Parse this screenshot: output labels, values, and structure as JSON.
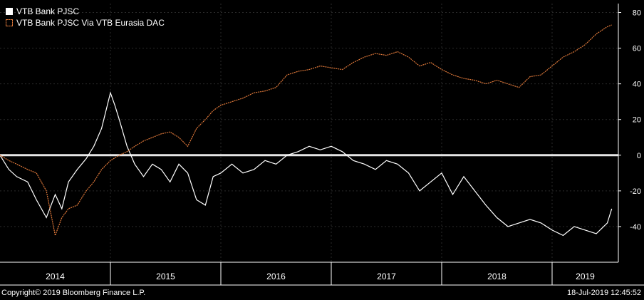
{
  "chart_data": {
    "type": "line",
    "title": "",
    "xlabel": "",
    "ylabel": "",
    "x_ticks": [
      "2014",
      "2015",
      "2016",
      "2017",
      "2018",
      "2019"
    ],
    "y_ticks": [
      80,
      60,
      40,
      20,
      0,
      -20,
      -40
    ],
    "ylim": [
      -60,
      85
    ],
    "xlim": [
      2014.0,
      2019.6
    ],
    "baseline": 0,
    "legend_position": "top-left",
    "series": [
      {
        "name": "VTB Bank PJSC",
        "color": "#ffffff",
        "style": "solid",
        "x": [
          2014.0,
          2014.08,
          2014.15,
          2014.25,
          2014.33,
          2014.42,
          2014.5,
          2014.56,
          2014.62,
          2014.7,
          2014.78,
          2014.85,
          2014.92,
          2015.0,
          2015.04,
          2015.08,
          2015.15,
          2015.22,
          2015.3,
          2015.38,
          2015.46,
          2015.54,
          2015.62,
          2015.7,
          2015.78,
          2015.86,
          2015.93,
          2016.0,
          2016.1,
          2016.2,
          2016.3,
          2016.4,
          2016.5,
          2016.6,
          2016.7,
          2016.8,
          2016.9,
          2017.0,
          2017.1,
          2017.2,
          2017.3,
          2017.4,
          2017.5,
          2017.6,
          2017.7,
          2017.8,
          2017.9,
          2018.0,
          2018.1,
          2018.2,
          2018.3,
          2018.4,
          2018.5,
          2018.6,
          2018.7,
          2018.8,
          2018.9,
          2019.0,
          2019.1,
          2019.2,
          2019.3,
          2019.4,
          2019.5,
          2019.54
        ],
        "y": [
          0,
          -8,
          -12,
          -15,
          -25,
          -35,
          -22,
          -30,
          -15,
          -8,
          -2,
          5,
          15,
          35,
          28,
          20,
          5,
          -5,
          -12,
          -5,
          -8,
          -15,
          -5,
          -10,
          -25,
          -28,
          -12,
          -10,
          -5,
          -10,
          -8,
          -3,
          -5,
          0,
          2,
          5,
          3,
          5,
          2,
          -3,
          -5,
          -8,
          -3,
          -5,
          -10,
          -20,
          -15,
          -10,
          -22,
          -12,
          -20,
          -28,
          -35,
          -40,
          -38,
          -36,
          -38,
          -42,
          -45,
          -40,
          -42,
          -44,
          -38,
          -30
        ]
      },
      {
        "name": "VTB Bank PJSC Via VTB Eurasia DAC",
        "color": "#e0793a",
        "style": "dashed",
        "x": [
          2014.0,
          2014.08,
          2014.15,
          2014.25,
          2014.33,
          2014.42,
          2014.5,
          2014.56,
          2014.62,
          2014.7,
          2014.78,
          2014.85,
          2014.92,
          2015.0,
          2015.08,
          2015.15,
          2015.22,
          2015.3,
          2015.38,
          2015.46,
          2015.54,
          2015.62,
          2015.7,
          2015.78,
          2015.86,
          2015.93,
          2016.0,
          2016.1,
          2016.2,
          2016.3,
          2016.4,
          2016.5,
          2016.6,
          2016.7,
          2016.8,
          2016.9,
          2017.0,
          2017.1,
          2017.2,
          2017.3,
          2017.4,
          2017.5,
          2017.6,
          2017.7,
          2017.8,
          2017.9,
          2018.0,
          2018.1,
          2018.2,
          2018.3,
          2018.4,
          2018.5,
          2018.6,
          2018.7,
          2018.8,
          2018.9,
          2019.0,
          2019.1,
          2019.2,
          2019.3,
          2019.4,
          2019.5,
          2019.54
        ],
        "y": [
          0,
          -3,
          -5,
          -8,
          -10,
          -20,
          -45,
          -35,
          -30,
          -28,
          -20,
          -15,
          -8,
          -3,
          0,
          2,
          5,
          8,
          10,
          12,
          13,
          10,
          5,
          15,
          20,
          25,
          28,
          30,
          32,
          35,
          36,
          38,
          45,
          47,
          48,
          50,
          49,
          48,
          52,
          55,
          57,
          56,
          58,
          55,
          50,
          52,
          48,
          45,
          43,
          42,
          40,
          42,
          40,
          38,
          44,
          45,
          50,
          55,
          58,
          62,
          68,
          72,
          73
        ]
      }
    ]
  },
  "legend": {
    "series1": "VTB Bank PJSC",
    "series2": "VTB Bank PJSC Via VTB Eurasia DAC"
  },
  "footer": {
    "copyright": "Copyright© 2019 Bloomberg Finance L.P.",
    "timestamp": "18-Jul-2019 12:45:52"
  },
  "colors": {
    "background": "#000000",
    "grid": "#2a2a2a",
    "axis": "#ffffff",
    "series1": "#ffffff",
    "series2": "#e0793a"
  }
}
